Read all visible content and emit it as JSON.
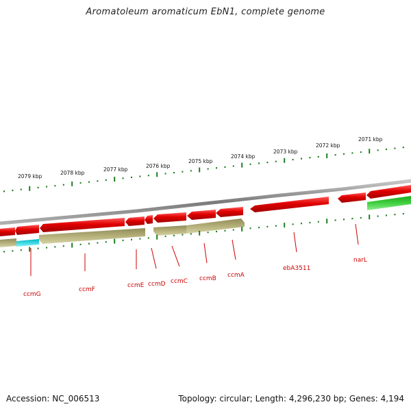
{
  "title": "Aromatoleum aromaticum EbN1, complete genome",
  "footer": {
    "accession": "Accession: NC_006513",
    "summary": "Topology: circular; Length: 4,296,230 bp; Genes: 4,194"
  },
  "colors": {
    "forward_cds": "#e00000",
    "reverse_cds": "#b5b07a",
    "other_feature": "#33cc33",
    "rna_feature": "#00e5ee",
    "backbone": "#8c8c8c",
    "tick": "#1e7d1e",
    "gene_label": "#cc0000"
  },
  "scale_labels": [
    "2071 kbp",
    "2072 kbp",
    "2073 kbp",
    "2074 kbp",
    "2075 kbp",
    "2076 kbp",
    "2077 kbp",
    "2078 kbp",
    "2079 kbp"
  ],
  "gene_labels": [
    "ccmG",
    "ccmF",
    "ccmE",
    "ccmD",
    "ccmC",
    "ccmB",
    "ccmA",
    "ebA3511",
    "narL"
  ]
}
